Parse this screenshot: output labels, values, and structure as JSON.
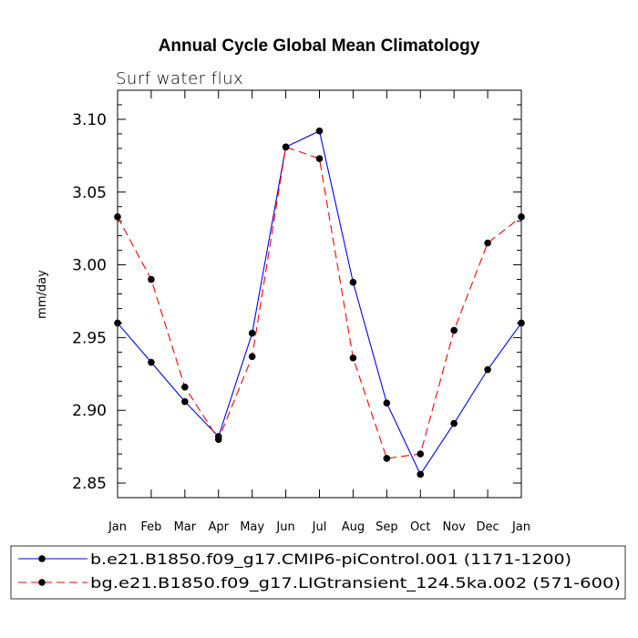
{
  "chart_data": {
    "type": "line",
    "title": "Annual Cycle Global Mean Climatology",
    "subtitle": "Surf water flux",
    "ylabel": "mm/day",
    "xlabel": "",
    "categories": [
      "Jan",
      "Feb",
      "Mar",
      "Apr",
      "May",
      "Jun",
      "Jul",
      "Aug",
      "Sep",
      "Oct",
      "Nov",
      "Dec",
      "Jan"
    ],
    "ylim": [
      2.84,
      3.12
    ],
    "yticks": [
      2.85,
      2.9,
      2.95,
      3.0,
      3.05,
      3.1
    ],
    "ytick_labels": [
      "2.85",
      "2.90",
      "2.95",
      "3.00",
      "3.05",
      "3.10"
    ],
    "series": [
      {
        "name": "b.e21.B1850.f09_g17.CMIP6-piControl.001 (1171-1200)",
        "color": "#0000ff",
        "dash": "solid",
        "values": [
          2.96,
          2.933,
          2.906,
          2.882,
          2.953,
          3.081,
          3.092,
          2.988,
          2.905,
          2.856,
          2.891,
          2.928,
          2.96
        ]
      },
      {
        "name": "bg.e21.B1850.f09_g17.LIGtransient_124.5ka.002 (571-600)",
        "color": "#ff0000",
        "dash": "dashed",
        "values": [
          3.033,
          2.99,
          2.916,
          2.88,
          2.937,
          3.081,
          3.073,
          2.936,
          2.867,
          2.87,
          2.955,
          3.015,
          3.033
        ]
      }
    ],
    "legend_position": "bottom"
  }
}
